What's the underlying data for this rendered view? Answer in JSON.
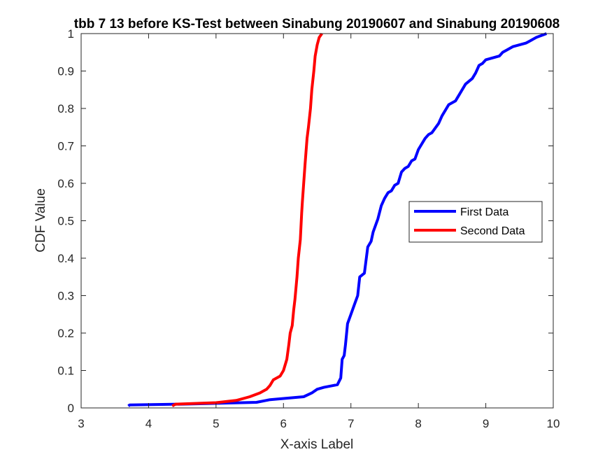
{
  "chart_data": {
    "type": "line",
    "title": "tbb 7 13 before KS-Test between Sinabung 20190607 and Sinabung 20190608",
    "xlabel": "X-axis Label",
    "ylabel": "CDF Value",
    "xlim": [
      3,
      10
    ],
    "ylim": [
      0,
      1
    ],
    "x_ticks": [
      3,
      4,
      5,
      6,
      7,
      8,
      9,
      10
    ],
    "y_ticks": [
      0,
      0.1,
      0.2,
      0.3,
      0.4,
      0.5,
      0.6,
      0.7,
      0.8,
      0.9,
      1
    ],
    "x_tick_labels": [
      "3",
      "4",
      "5",
      "6",
      "7",
      "8",
      "9",
      "10"
    ],
    "y_tick_labels": [
      "0",
      "0.1",
      "0.2",
      "0.3",
      "0.4",
      "0.5",
      "0.6",
      "0.7",
      "0.8",
      "0.9",
      "1"
    ],
    "grid": false,
    "legend_position": "right",
    "series": [
      {
        "name": "First Data",
        "color": "#0000ff",
        "x": [
          3.7,
          3.72,
          4.5,
          5.6,
          5.8,
          6.3,
          6.42,
          6.5,
          6.6,
          6.8,
          6.85,
          6.87,
          6.9,
          6.92,
          6.95,
          7.0,
          7.05,
          7.1,
          7.13,
          7.2,
          7.25,
          7.3,
          7.33,
          7.4,
          7.45,
          7.5,
          7.55,
          7.6,
          7.65,
          7.7,
          7.75,
          7.8,
          7.85,
          7.9,
          7.95,
          8.0,
          8.1,
          8.15,
          8.2,
          8.3,
          8.35,
          8.4,
          8.45,
          8.55,
          8.6,
          8.7,
          8.8,
          8.85,
          8.9,
          8.95,
          9.0,
          9.2,
          9.25,
          9.3,
          9.4,
          9.5,
          9.6,
          9.65,
          9.75,
          9.9
        ],
        "y": [
          0.005,
          0.008,
          0.01,
          0.015,
          0.022,
          0.03,
          0.04,
          0.05,
          0.055,
          0.062,
          0.08,
          0.13,
          0.14,
          0.17,
          0.225,
          0.25,
          0.275,
          0.3,
          0.35,
          0.36,
          0.43,
          0.445,
          0.47,
          0.505,
          0.54,
          0.56,
          0.575,
          0.58,
          0.595,
          0.6,
          0.63,
          0.64,
          0.645,
          0.66,
          0.665,
          0.69,
          0.72,
          0.73,
          0.735,
          0.76,
          0.78,
          0.795,
          0.81,
          0.82,
          0.835,
          0.865,
          0.88,
          0.895,
          0.915,
          0.92,
          0.93,
          0.94,
          0.95,
          0.955,
          0.965,
          0.97,
          0.975,
          0.98,
          0.99,
          1.0
        ]
      },
      {
        "name": "Second Data",
        "color": "#ff0000",
        "x": [
          4.35,
          4.4,
          5.0,
          5.3,
          5.5,
          5.65,
          5.75,
          5.8,
          5.85,
          5.95,
          6.0,
          6.05,
          6.08,
          6.1,
          6.13,
          6.15,
          6.17,
          6.2,
          6.22,
          6.25,
          6.27,
          6.28,
          6.3,
          6.32,
          6.35,
          6.37,
          6.4,
          6.42,
          6.45,
          6.47,
          6.5,
          6.53,
          6.57
        ],
        "y": [
          0.005,
          0.01,
          0.014,
          0.02,
          0.03,
          0.04,
          0.05,
          0.06,
          0.075,
          0.085,
          0.1,
          0.13,
          0.17,
          0.2,
          0.22,
          0.26,
          0.29,
          0.35,
          0.4,
          0.45,
          0.52,
          0.55,
          0.6,
          0.65,
          0.72,
          0.75,
          0.8,
          0.85,
          0.9,
          0.94,
          0.97,
          0.99,
          1.0
        ]
      }
    ]
  }
}
